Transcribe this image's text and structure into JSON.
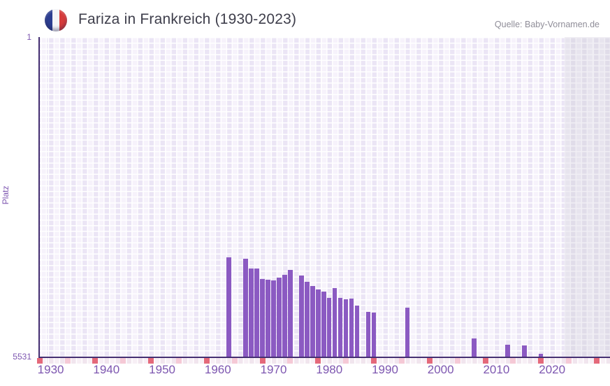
{
  "header": {
    "title": "Fariza in Frankreich (1930-2023)",
    "source": "Quelle: Baby-Vornamen.de",
    "flag": "france-flag"
  },
  "y_axis": {
    "axis_title": "Platz",
    "top_label": "1",
    "bottom_label": "5531",
    "min": 1,
    "max": 5531,
    "inverted": true
  },
  "x_axis": {
    "ticks": [
      1930,
      1940,
      1950,
      1960,
      1970,
      1980,
      1990,
      2000,
      2010,
      2020
    ],
    "start_year": 1928,
    "end_year": 2030,
    "recent_zone_start_year": 2022
  },
  "strip": {
    "mark_years_dark": [
      1928,
      1938,
      1948,
      1958,
      1968,
      1978,
      1988,
      1998,
      2008,
      2018,
      2028
    ],
    "mark_years_light": [
      1933,
      1943,
      1953,
      1963,
      1973,
      1983,
      1993,
      2003,
      2013,
      2023
    ]
  },
  "chart_data": {
    "type": "bar",
    "title": "Fariza in Frankreich (1930-2023)",
    "xlabel": "",
    "ylabel": "Platz",
    "ylim": [
      5531,
      1
    ],
    "grid": true,
    "legend": false,
    "points": [
      {
        "year": 1962,
        "rank": 3813
      },
      {
        "year": 1965,
        "rank": 3837
      },
      {
        "year": 1966,
        "rank": 4006
      },
      {
        "year": 1967,
        "rank": 4006
      },
      {
        "year": 1968,
        "rank": 4188
      },
      {
        "year": 1969,
        "rank": 4200
      },
      {
        "year": 1970,
        "rank": 4212
      },
      {
        "year": 1971,
        "rank": 4163
      },
      {
        "year": 1972,
        "rank": 4115
      },
      {
        "year": 1973,
        "rank": 4024
      },
      {
        "year": 1975,
        "rank": 4130
      },
      {
        "year": 1976,
        "rank": 4232
      },
      {
        "year": 1977,
        "rank": 4312
      },
      {
        "year": 1978,
        "rank": 4365
      },
      {
        "year": 1979,
        "rank": 4405
      },
      {
        "year": 1980,
        "rank": 4518
      },
      {
        "year": 1981,
        "rank": 4341
      },
      {
        "year": 1982,
        "rank": 4518
      },
      {
        "year": 1983,
        "rank": 4535
      },
      {
        "year": 1984,
        "rank": 4523
      },
      {
        "year": 1985,
        "rank": 4651
      },
      {
        "year": 1987,
        "rank": 4753
      },
      {
        "year": 1988,
        "rank": 4765
      },
      {
        "year": 1994,
        "rank": 4684
      },
      {
        "year": 2006,
        "rank": 5216
      },
      {
        "year": 2012,
        "rank": 5329
      },
      {
        "year": 2015,
        "rank": 5336
      },
      {
        "year": 2018,
        "rank": 5483
      }
    ]
  },
  "colors": {
    "bar": "#8b5ac2",
    "axis_line": "#453072",
    "tick_text": "#7d56b0",
    "title_text": "#3e3e4b",
    "source_text": "#8f8d98",
    "cell_dark": "#ebe5f5",
    "cell_light": "#f6f2fb",
    "recent_cell_dark": "#e0dce9",
    "recent_cell_light": "#e7e4ee",
    "strip_mark_dark": "#e4697a",
    "strip_mark_light": "#f5c9d6"
  }
}
